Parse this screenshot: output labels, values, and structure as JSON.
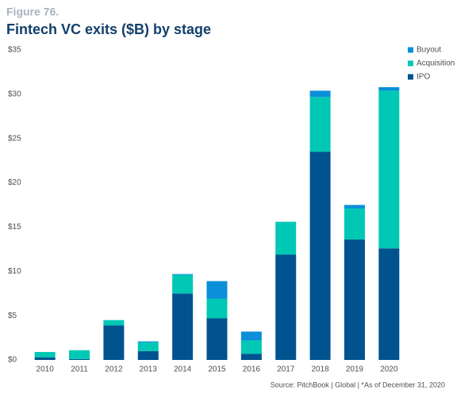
{
  "chart_data": {
    "type": "bar",
    "stacked": true,
    "figure_label": "Figure 76.",
    "title": "Fintech VC exits ($B) by stage",
    "source": "Source: PitchBook | Global | *As of December 31, 2020",
    "categories": [
      "2010",
      "2011",
      "2012",
      "2013",
      "2014",
      "2015",
      "2016",
      "2017",
      "2018",
      "2019",
      "2020"
    ],
    "series": [
      {
        "name": "IPO",
        "color": "#00538f",
        "values": [
          0.3,
          0.1,
          3.9,
          1.0,
          7.5,
          4.7,
          0.7,
          11.9,
          23.5,
          13.6,
          12.6
        ]
      },
      {
        "name": "Acquisition",
        "color": "#00c8b4",
        "values": [
          0.6,
          1.0,
          0.6,
          1.0,
          2.1,
          2.2,
          1.5,
          3.7,
          6.2,
          3.5,
          17.8
        ]
      },
      {
        "name": "Buyout",
        "color": "#0b8fd8",
        "values": [
          0,
          0,
          0,
          0.1,
          0.1,
          2.0,
          1.0,
          0,
          0.7,
          0.4,
          0.4
        ]
      }
    ],
    "ylim": [
      0,
      35
    ],
    "yticks": [
      {
        "value": 0,
        "label": "$0"
      },
      {
        "value": 5,
        "label": "$5"
      },
      {
        "value": 10,
        "label": "$10"
      },
      {
        "value": 15,
        "label": "$15"
      },
      {
        "value": 20,
        "label": "$20"
      },
      {
        "value": 25,
        "label": "$25"
      },
      {
        "value": 30,
        "label": "$30"
      },
      {
        "value": 35,
        "label": "$35"
      }
    ],
    "grid": false,
    "legend": "top-right"
  }
}
